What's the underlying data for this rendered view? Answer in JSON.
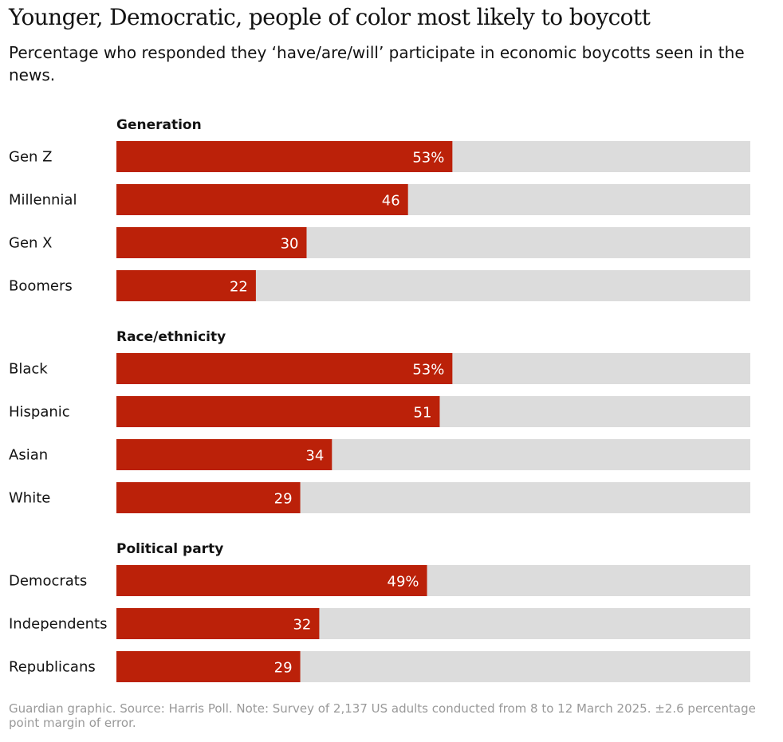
{
  "title": "Younger, Democratic, people of color most likely to boycott",
  "subtitle": "Percentage who responded they ‘have/are/will’ participate in economic boycotts seen in the news.",
  "footer": "Guardian graphic. Source: Harris Poll. Note: Survey of 2,137 US adults conducted from 8 to 12 March 2025. ±2.6 percentage point margin of error.",
  "colors": {
    "bar": "#bb2109",
    "track": "#dcdcdc",
    "value_text": "#ffffff",
    "footer_text": "#999999"
  },
  "chart_data": {
    "type": "bar",
    "orientation": "horizontal",
    "xlim": [
      0,
      100
    ],
    "unit": "%",
    "grid": false,
    "groups": [
      {
        "name": "Generation",
        "categories": [
          "Gen Z",
          "Millennial",
          "Gen X",
          "Boomers"
        ],
        "values": [
          53,
          46,
          30,
          22
        ],
        "value_labels": [
          "53%",
          "46",
          "30",
          "22"
        ]
      },
      {
        "name": "Race/ethnicity",
        "categories": [
          "Black",
          "Hispanic",
          "Asian",
          "White"
        ],
        "values": [
          53,
          51,
          34,
          29
        ],
        "value_labels": [
          "53%",
          "51",
          "34",
          "29"
        ]
      },
      {
        "name": "Political party",
        "categories": [
          "Democrats",
          "Independents",
          "Republicans"
        ],
        "values": [
          49,
          32,
          29
        ],
        "value_labels": [
          "49%",
          "32",
          "29"
        ]
      }
    ]
  }
}
